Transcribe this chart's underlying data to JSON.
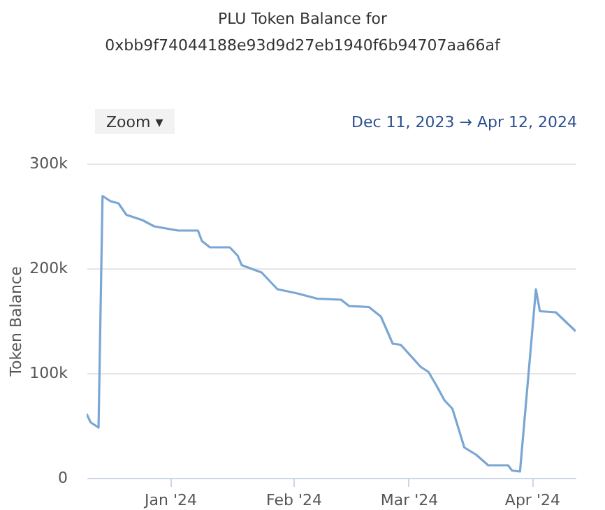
{
  "chart_data": {
    "type": "line",
    "title": "PLU Token Balance for",
    "subtitle": "0xbb9f74044188e93d9d27eb1940f6b94707aa66af",
    "ylabel": "Token Balance",
    "annotations": [
      "Zoom ▾",
      "Dec 11, 2023 → Apr 12, 2024"
    ],
    "x": [
      "2023-12-11",
      "2023-12-12",
      "2023-12-14",
      "2023-12-15",
      "2023-12-17",
      "2023-12-19",
      "2023-12-21",
      "2023-12-25",
      "2023-12-28",
      "2024-01-03",
      "2024-01-08",
      "2024-01-09",
      "2024-01-11",
      "2024-01-16",
      "2024-01-18",
      "2024-01-19",
      "2024-01-24",
      "2024-01-28",
      "2024-02-02",
      "2024-02-07",
      "2024-02-13",
      "2024-02-15",
      "2024-02-20",
      "2024-02-23",
      "2024-02-26",
      "2024-02-28",
      "2024-03-04",
      "2024-03-06",
      "2024-03-08",
      "2024-03-10",
      "2024-03-12",
      "2024-03-15",
      "2024-03-18",
      "2024-03-21",
      "2024-03-26",
      "2024-03-27",
      "2024-03-29",
      "2024-04-02",
      "2024-04-03",
      "2024-04-07",
      "2024-04-12"
    ],
    "values": [
      61000,
      53000,
      48000,
      269000,
      264000,
      262000,
      251000,
      246000,
      240000,
      236000,
      236000,
      226000,
      220000,
      220000,
      212000,
      203000,
      196000,
      180000,
      176000,
      171000,
      170000,
      164000,
      163000,
      154000,
      128000,
      127000,
      106000,
      101000,
      88000,
      74000,
      66000,
      29000,
      22000,
      12000,
      12000,
      7000,
      6000,
      180000,
      159000,
      158000,
      140000
    ],
    "color": "#7aa6d4",
    "xlim": [
      "2023-12-11",
      "2024-04-12"
    ],
    "xticks": [
      {
        "value": "2024-01-01",
        "label": "Jan '24"
      },
      {
        "value": "2024-02-01",
        "label": "Feb '24"
      },
      {
        "value": "2024-03-01",
        "label": "Mar '24"
      },
      {
        "value": "2024-04-01",
        "label": "Apr '24"
      }
    ],
    "ylim": [
      0,
      300000
    ],
    "yticks": [
      0,
      {
        "value": 100000,
        "label": "100k"
      },
      {
        "value": 200000,
        "label": "200k"
      },
      {
        "value": 300000,
        "label": "300k"
      }
    ],
    "grid": "y"
  }
}
